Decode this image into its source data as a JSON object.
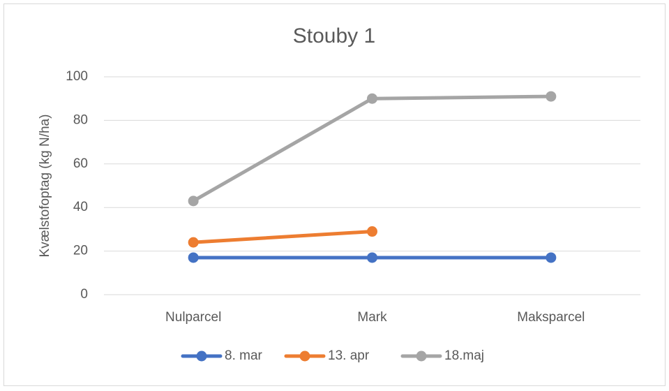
{
  "chart_data": {
    "type": "line",
    "title": "Stouby 1",
    "y_label": "Kvælstofoptag (kg N/ha)",
    "categories": [
      "Nulparcel",
      "Mark",
      "Maksparcel"
    ],
    "series": [
      {
        "name": "8. mar",
        "color": "#4472c4",
        "values": [
          17,
          17,
          17
        ]
      },
      {
        "name": "13. apr",
        "color": "#ed7d31",
        "values": [
          24,
          29,
          null
        ]
      },
      {
        "name": "18.maj",
        "color": "#a5a5a5",
        "values": [
          43,
          90,
          91
        ]
      }
    ],
    "ylim": [
      0,
      100
    ],
    "yticks": [
      0,
      20,
      40,
      60,
      80,
      100
    ],
    "grid": true,
    "legend": "bottom"
  }
}
